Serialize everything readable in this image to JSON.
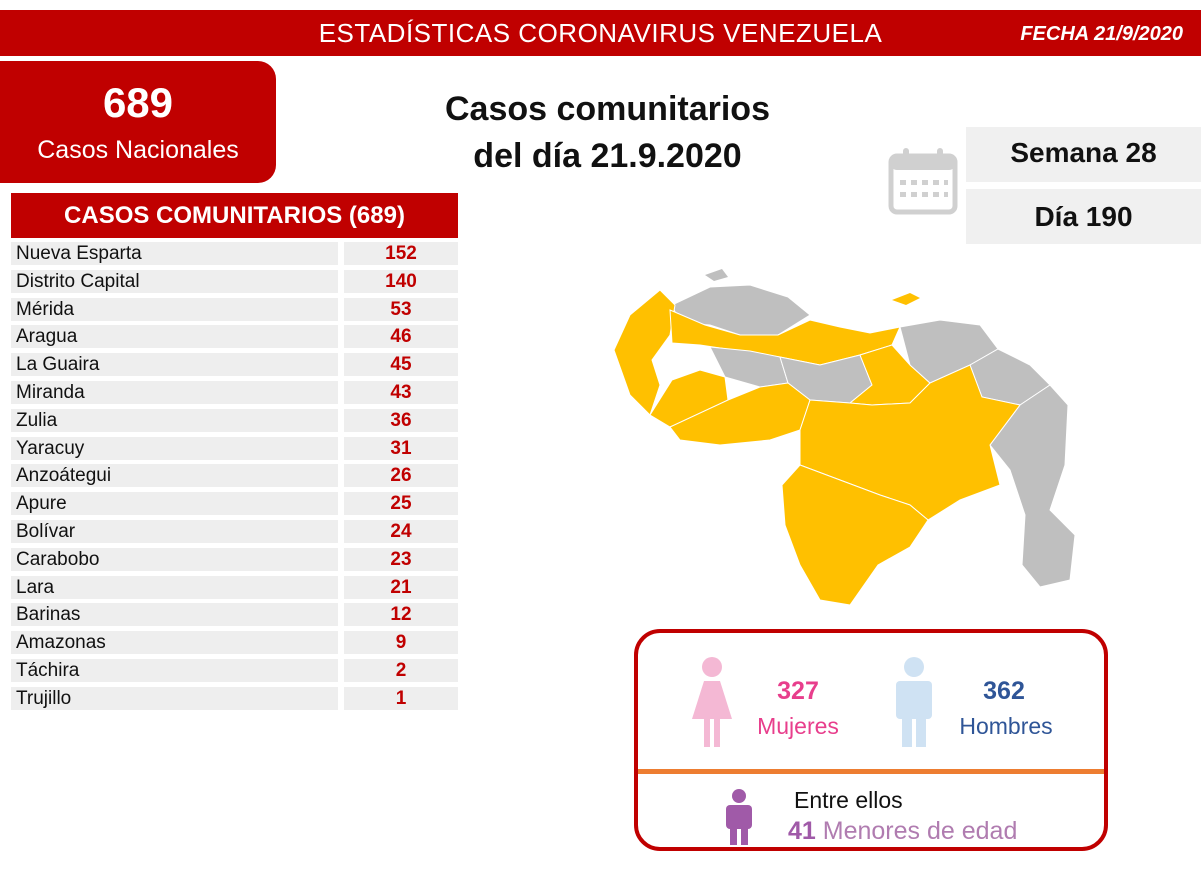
{
  "header": {
    "title": "ESTADÍSTICAS CORONAVIRUS VENEZUELA",
    "date": "FECHA 21/9/2020"
  },
  "national": {
    "count": "689",
    "label": "Casos Nacionales"
  },
  "main_title": {
    "line1": "Casos comunitarios",
    "line2": "del día 21.9.2020"
  },
  "calendar": {
    "week": "Semana 28",
    "day": "Día 190",
    "icon": "calendar-icon"
  },
  "table": {
    "title": "CASOS COMUNITARIOS (689)",
    "rows": [
      {
        "state": "Nueva Esparta",
        "cases": "152"
      },
      {
        "state": "Distrito Capital",
        "cases": "140"
      },
      {
        "state": "Mérida",
        "cases": "53"
      },
      {
        "state": "Aragua",
        "cases": "46"
      },
      {
        "state": "La Guaira",
        "cases": "45"
      },
      {
        "state": "Miranda",
        "cases": "43"
      },
      {
        "state": "Zulia",
        "cases": "36"
      },
      {
        "state": "Yaracuy",
        "cases": "31"
      },
      {
        "state": "Anzoátegui",
        "cases": "26"
      },
      {
        "state": "Apure",
        "cases": "25"
      },
      {
        "state": "Bolívar",
        "cases": "24"
      },
      {
        "state": "Carabobo",
        "cases": "23"
      },
      {
        "state": "Lara",
        "cases": "21"
      },
      {
        "state": "Barinas",
        "cases": "12"
      },
      {
        "state": "Amazonas",
        "cases": "9"
      },
      {
        "state": "Táchira",
        "cases": "2"
      },
      {
        "state": "Trujillo",
        "cases": "1"
      }
    ]
  },
  "gender": {
    "women_count": "327",
    "women_label": "Mujeres",
    "men_count": "362",
    "men_label": "Hombres",
    "among_label": "Entre ellos",
    "minors_count": "41",
    "minors_label": "Menores de edad"
  },
  "colors": {
    "primary_red": "#c00000",
    "map_active": "#ffc000",
    "map_inactive": "#bfbfbf",
    "women": "#e83e8c",
    "men": "#2f5597",
    "minors": "#a05aa8",
    "divider": "#ed7d31"
  }
}
